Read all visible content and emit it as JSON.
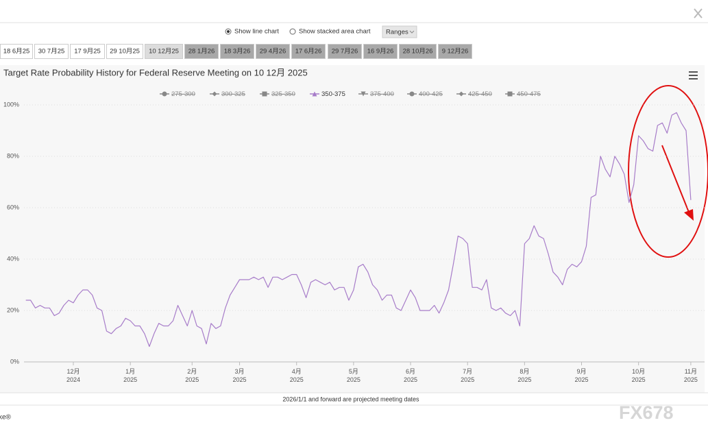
{
  "controls": {
    "view_options": [
      {
        "label": "Show line chart",
        "checked": true
      },
      {
        "label": "Show stacked area chart",
        "checked": false
      }
    ],
    "ranges": "Ranges"
  },
  "tabs": [
    {
      "label": "18 6月25",
      "state": "past"
    },
    {
      "label": "30 7月25",
      "state": "past"
    },
    {
      "label": "17 9月25",
      "state": "past"
    },
    {
      "label": "29 10月25",
      "state": "past"
    },
    {
      "label": "10 12月25",
      "state": "selected"
    },
    {
      "label": "28 1月26",
      "state": "projected"
    },
    {
      "label": "18 3月26",
      "state": "projected"
    },
    {
      "label": "29 4月26",
      "state": "projected"
    },
    {
      "label": "17 6月26",
      "state": "projected"
    },
    {
      "label": "29 7月26",
      "state": "projected"
    },
    {
      "label": "16 9月26",
      "state": "projected"
    },
    {
      "label": "28 10月26",
      "state": "projected"
    },
    {
      "label": "9 12月26",
      "state": "projected"
    }
  ],
  "chart_data": {
    "type": "line",
    "title": "Target Rate Probability History for Federal Reserve Meeting on 10 12月 2025",
    "categories": [
      null,
      null,
      null,
      null,
      null,
      null,
      null,
      null,
      null,
      null,
      "12月\n2024",
      null,
      null,
      null,
      null,
      null,
      null,
      null,
      null,
      null,
      null,
      null,
      "1月\n2025",
      null,
      null,
      null,
      null,
      null,
      null,
      null,
      null,
      null,
      null,
      null,
      null,
      "2月\n2025",
      null,
      null,
      null,
      null,
      null,
      null,
      null,
      null,
      null,
      "3月\n2025",
      null,
      null,
      null,
      null,
      null,
      null,
      null,
      null,
      null,
      null,
      null,
      "4月\n2025",
      null,
      null,
      null,
      null,
      null,
      null,
      null,
      null,
      null,
      null,
      null,
      "5月\n2025",
      null,
      null,
      null,
      null,
      null,
      null,
      null,
      null,
      null,
      null,
      null,
      "6月\n2025",
      null,
      null,
      null,
      null,
      null,
      null,
      null,
      null,
      null,
      null,
      null,
      "7月\n2025",
      null,
      null,
      null,
      null,
      null,
      null,
      null,
      null,
      null,
      null,
      null,
      "8月\n2025",
      null,
      null,
      null,
      null,
      null,
      null,
      null,
      null,
      null,
      null,
      null,
      "9月\n2025",
      null,
      null,
      null,
      null,
      null,
      null,
      null,
      null,
      null,
      null,
      null,
      "10月\n2025",
      null,
      null,
      null,
      null,
      null,
      null,
      null,
      null,
      null,
      null,
      "11月\n2025"
    ],
    "series": [
      {
        "name": "275-300",
        "marker": "circle",
        "visible": false
      },
      {
        "name": "300-325",
        "marker": "diamond",
        "visible": false
      },
      {
        "name": "325-350",
        "marker": "square",
        "visible": false
      },
      {
        "name": "350-375",
        "marker": "triangle",
        "visible": true,
        "color": "#a77cc9",
        "values": [
          24,
          24,
          21,
          22,
          21,
          21,
          18,
          19,
          22,
          24,
          23,
          26,
          28,
          28,
          26,
          21,
          20,
          12,
          11,
          13,
          14,
          17,
          16,
          14,
          14,
          11,
          6,
          11,
          15,
          14,
          14,
          16,
          22,
          18,
          14,
          20,
          14,
          13,
          7,
          15,
          13,
          14,
          21,
          26,
          29,
          32,
          32,
          32,
          33,
          32,
          33,
          29,
          33,
          33,
          32,
          33,
          34,
          34,
          30,
          25,
          31,
          32,
          31,
          30,
          31,
          28,
          29,
          29,
          24,
          28,
          37,
          38,
          35,
          30,
          28,
          24,
          26,
          26,
          21,
          20,
          24,
          28,
          25,
          20,
          20,
          20,
          22,
          19,
          23,
          28,
          38,
          49,
          48,
          46,
          29,
          29,
          28,
          32,
          21,
          20,
          21,
          19,
          18,
          20,
          14,
          46,
          48,
          53,
          49,
          48,
          42,
          35,
          33,
          30,
          36,
          38,
          37,
          39,
          45,
          64,
          65,
          80,
          75,
          72,
          80,
          77,
          73,
          62,
          69,
          88,
          86,
          83,
          82,
          92,
          93,
          89,
          96,
          97,
          93,
          90,
          63
        ]
      },
      {
        "name": "375-400",
        "marker": "triangle-down",
        "visible": false
      },
      {
        "name": "400-425",
        "marker": "circle",
        "visible": false
      },
      {
        "name": "425-450",
        "marker": "diamond",
        "visible": false
      },
      {
        "name": "450-475",
        "marker": "square",
        "visible": false
      }
    ],
    "ylim": [
      0,
      100
    ],
    "yticks": [
      {
        "value": 0,
        "label": "0%"
      },
      {
        "value": 20,
        "label": "20%"
      },
      {
        "value": 40,
        "label": "40%"
      },
      {
        "value": 60,
        "label": "60%"
      },
      {
        "value": 80,
        "label": "80%"
      },
      {
        "value": 100,
        "label": "100%"
      }
    ],
    "grid": true,
    "legend": "top"
  },
  "footer": {
    "note": "2026/1/1 and forward are projected meeting dates",
    "credit": "ke®",
    "watermark": "FX678"
  }
}
